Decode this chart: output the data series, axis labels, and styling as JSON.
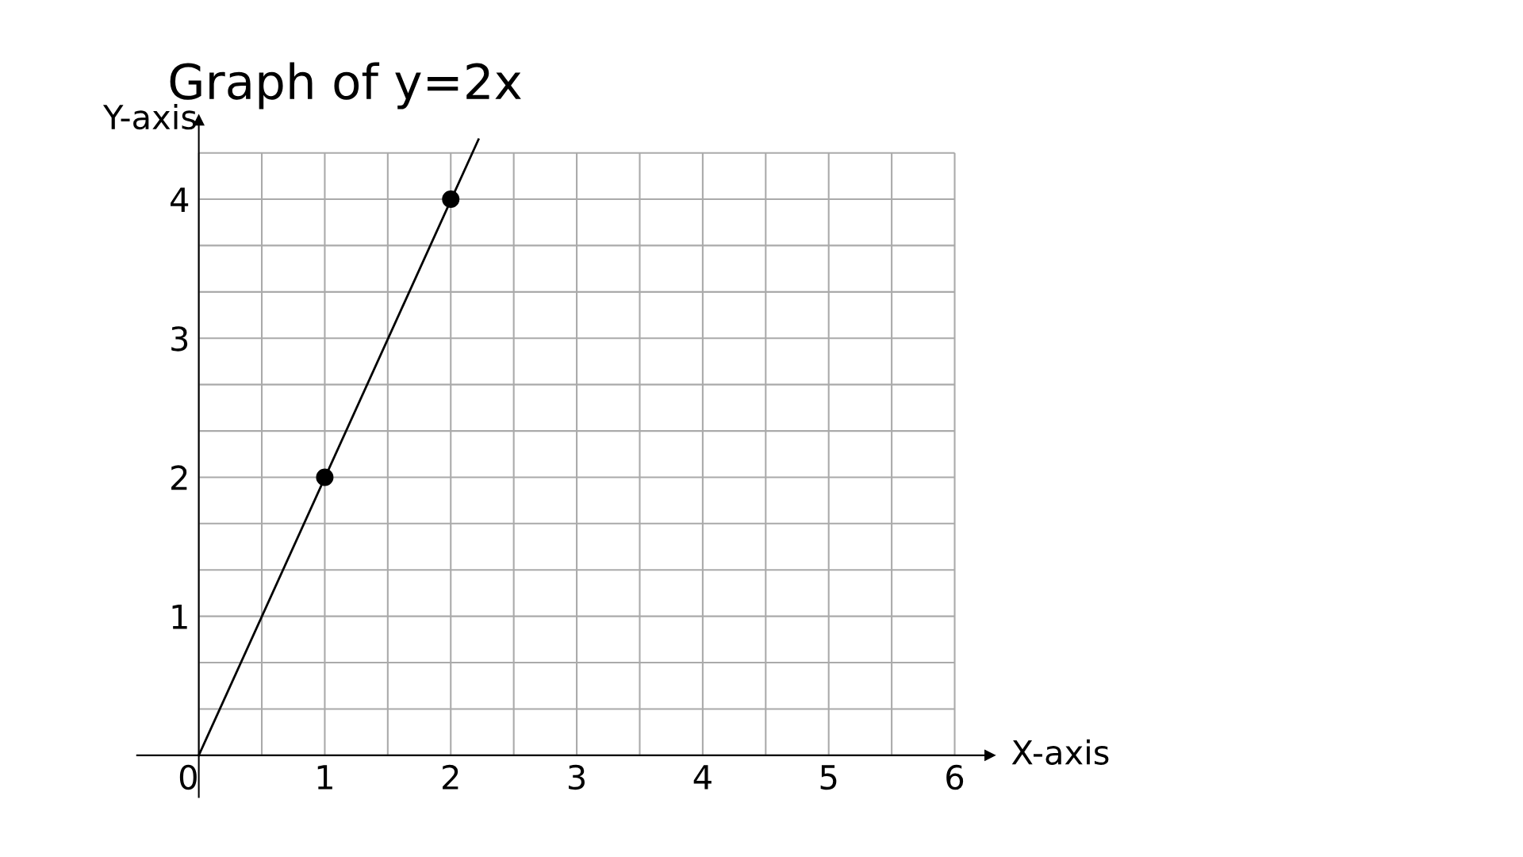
{
  "chart_data": {
    "type": "line",
    "title": "Graph of y=2x",
    "xlabel": "X-axis",
    "ylabel": "Y-axis",
    "series": [
      {
        "color": "#000000",
        "x": [
          0,
          2.22
        ],
        "values": [
          0,
          4.43
        ],
        "marker": "none"
      },
      {
        "type": "scatter",
        "color": "#000000",
        "x": [
          1,
          2
        ],
        "values": [
          2,
          4
        ],
        "marker": "circle"
      }
    ],
    "xlim": [
      -0.49,
      6.28
    ],
    "ylim": [
      -0.3,
      4.57
    ],
    "xticks": [
      0,
      {
        "value": 0.5,
        "label": null
      },
      1,
      {
        "value": 1.5,
        "label": null
      },
      2,
      {
        "value": 2.5,
        "label": null
      },
      3,
      {
        "value": 3.5,
        "label": null
      },
      4,
      {
        "value": 4.5,
        "label": null
      },
      5,
      {
        "value": 5.5,
        "label": null
      },
      6
    ],
    "yticks": [
      {
        "value": 0.333,
        "label": null
      },
      {
        "value": 0.667,
        "label": null
      },
      1,
      {
        "value": 1.333,
        "label": null
      },
      {
        "value": 1.667,
        "label": null
      },
      2,
      {
        "value": 2.333,
        "label": null
      },
      {
        "value": 2.667,
        "label": null
      },
      3,
      {
        "value": 3.333,
        "label": null
      },
      {
        "value": 3.667,
        "label": null
      },
      4,
      {
        "value": 4.333,
        "label": null
      }
    ],
    "grid": true
  }
}
